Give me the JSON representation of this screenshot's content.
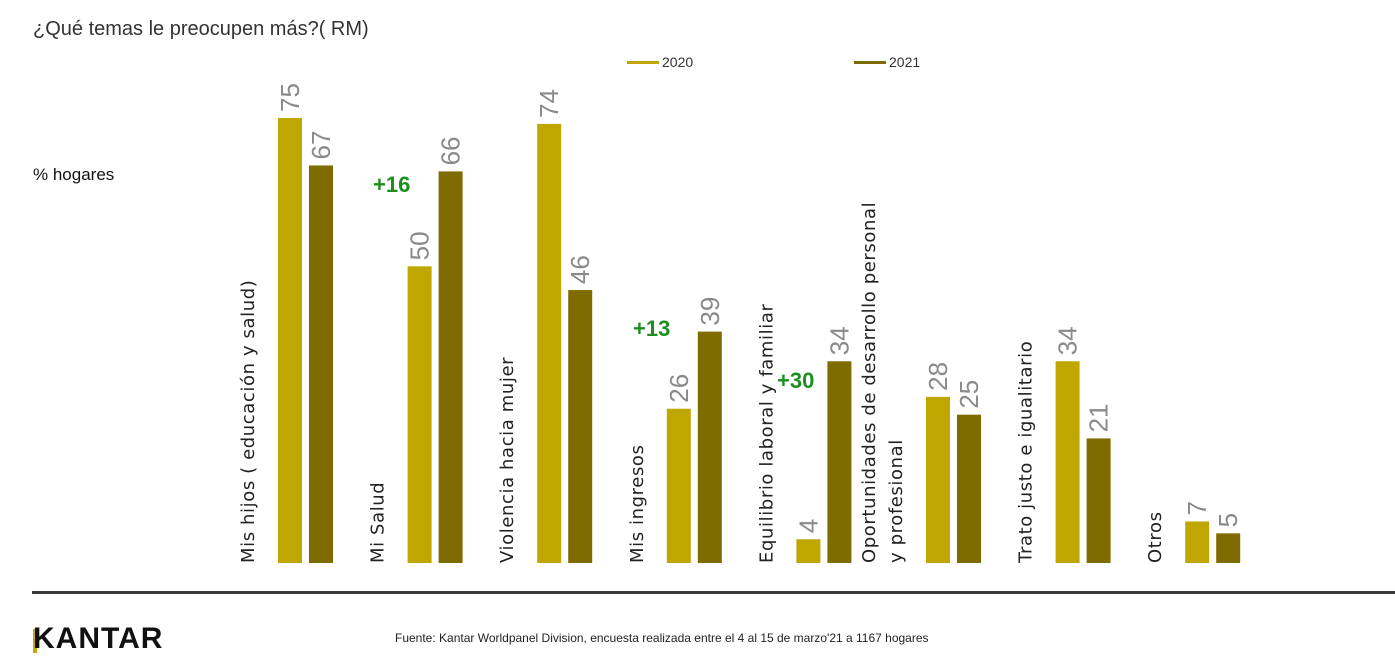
{
  "title": "¿Qué temas le preocupen más?( RM)",
  "y_unit_label": "% hogares",
  "brand": "KANTAR",
  "footer_note": "Fuente: Kantar Worldpanel Division, encuesta realizada entre el 4 al 15 de marzo'21 a 1167 hogares",
  "colors": {
    "series_2020": "#bfa600",
    "series_2021": "#7f6c00",
    "value_label": "#8a8a8a",
    "delta_label": "#1e8f1e",
    "category_label": "#222222"
  },
  "legend": [
    {
      "name": "2020",
      "color": "#bfa600"
    },
    {
      "name": "2021",
      "color": "#7f6c00"
    }
  ],
  "chart_data": {
    "type": "bar",
    "title": "¿Qué temas le preocupen más?( RM)",
    "ylabel": "% hogares",
    "xlabel": "",
    "ylim": [
      0,
      75
    ],
    "categories": [
      {
        "lines": [
          "Mis hijos ( educación y salud)"
        ]
      },
      {
        "lines": [
          "Mi Salud"
        ]
      },
      {
        "lines": [
          "Violencia hacia mujer"
        ]
      },
      {
        "lines": [
          "Mis ingresos"
        ]
      },
      {
        "lines": [
          "Equilibrio laboral y familiar"
        ]
      },
      {
        "lines": [
          "Oportunidades de desarrollo personal",
          "y profesional"
        ]
      },
      {
        "lines": [
          "Trato justo e igualitario"
        ]
      },
      {
        "lines": [
          "Otros"
        ]
      }
    ],
    "series": [
      {
        "name": "2020",
        "values": [
          75,
          50,
          74,
          26,
          4,
          28,
          34,
          7
        ]
      },
      {
        "name": "2021",
        "values": [
          67,
          66,
          46,
          39,
          34,
          25,
          21,
          5
        ]
      }
    ],
    "annotations": [
      {
        "category_index": 1,
        "text": "+16"
      },
      {
        "category_index": 3,
        "text": "+13"
      },
      {
        "category_index": 4,
        "text": "+30"
      }
    ]
  }
}
